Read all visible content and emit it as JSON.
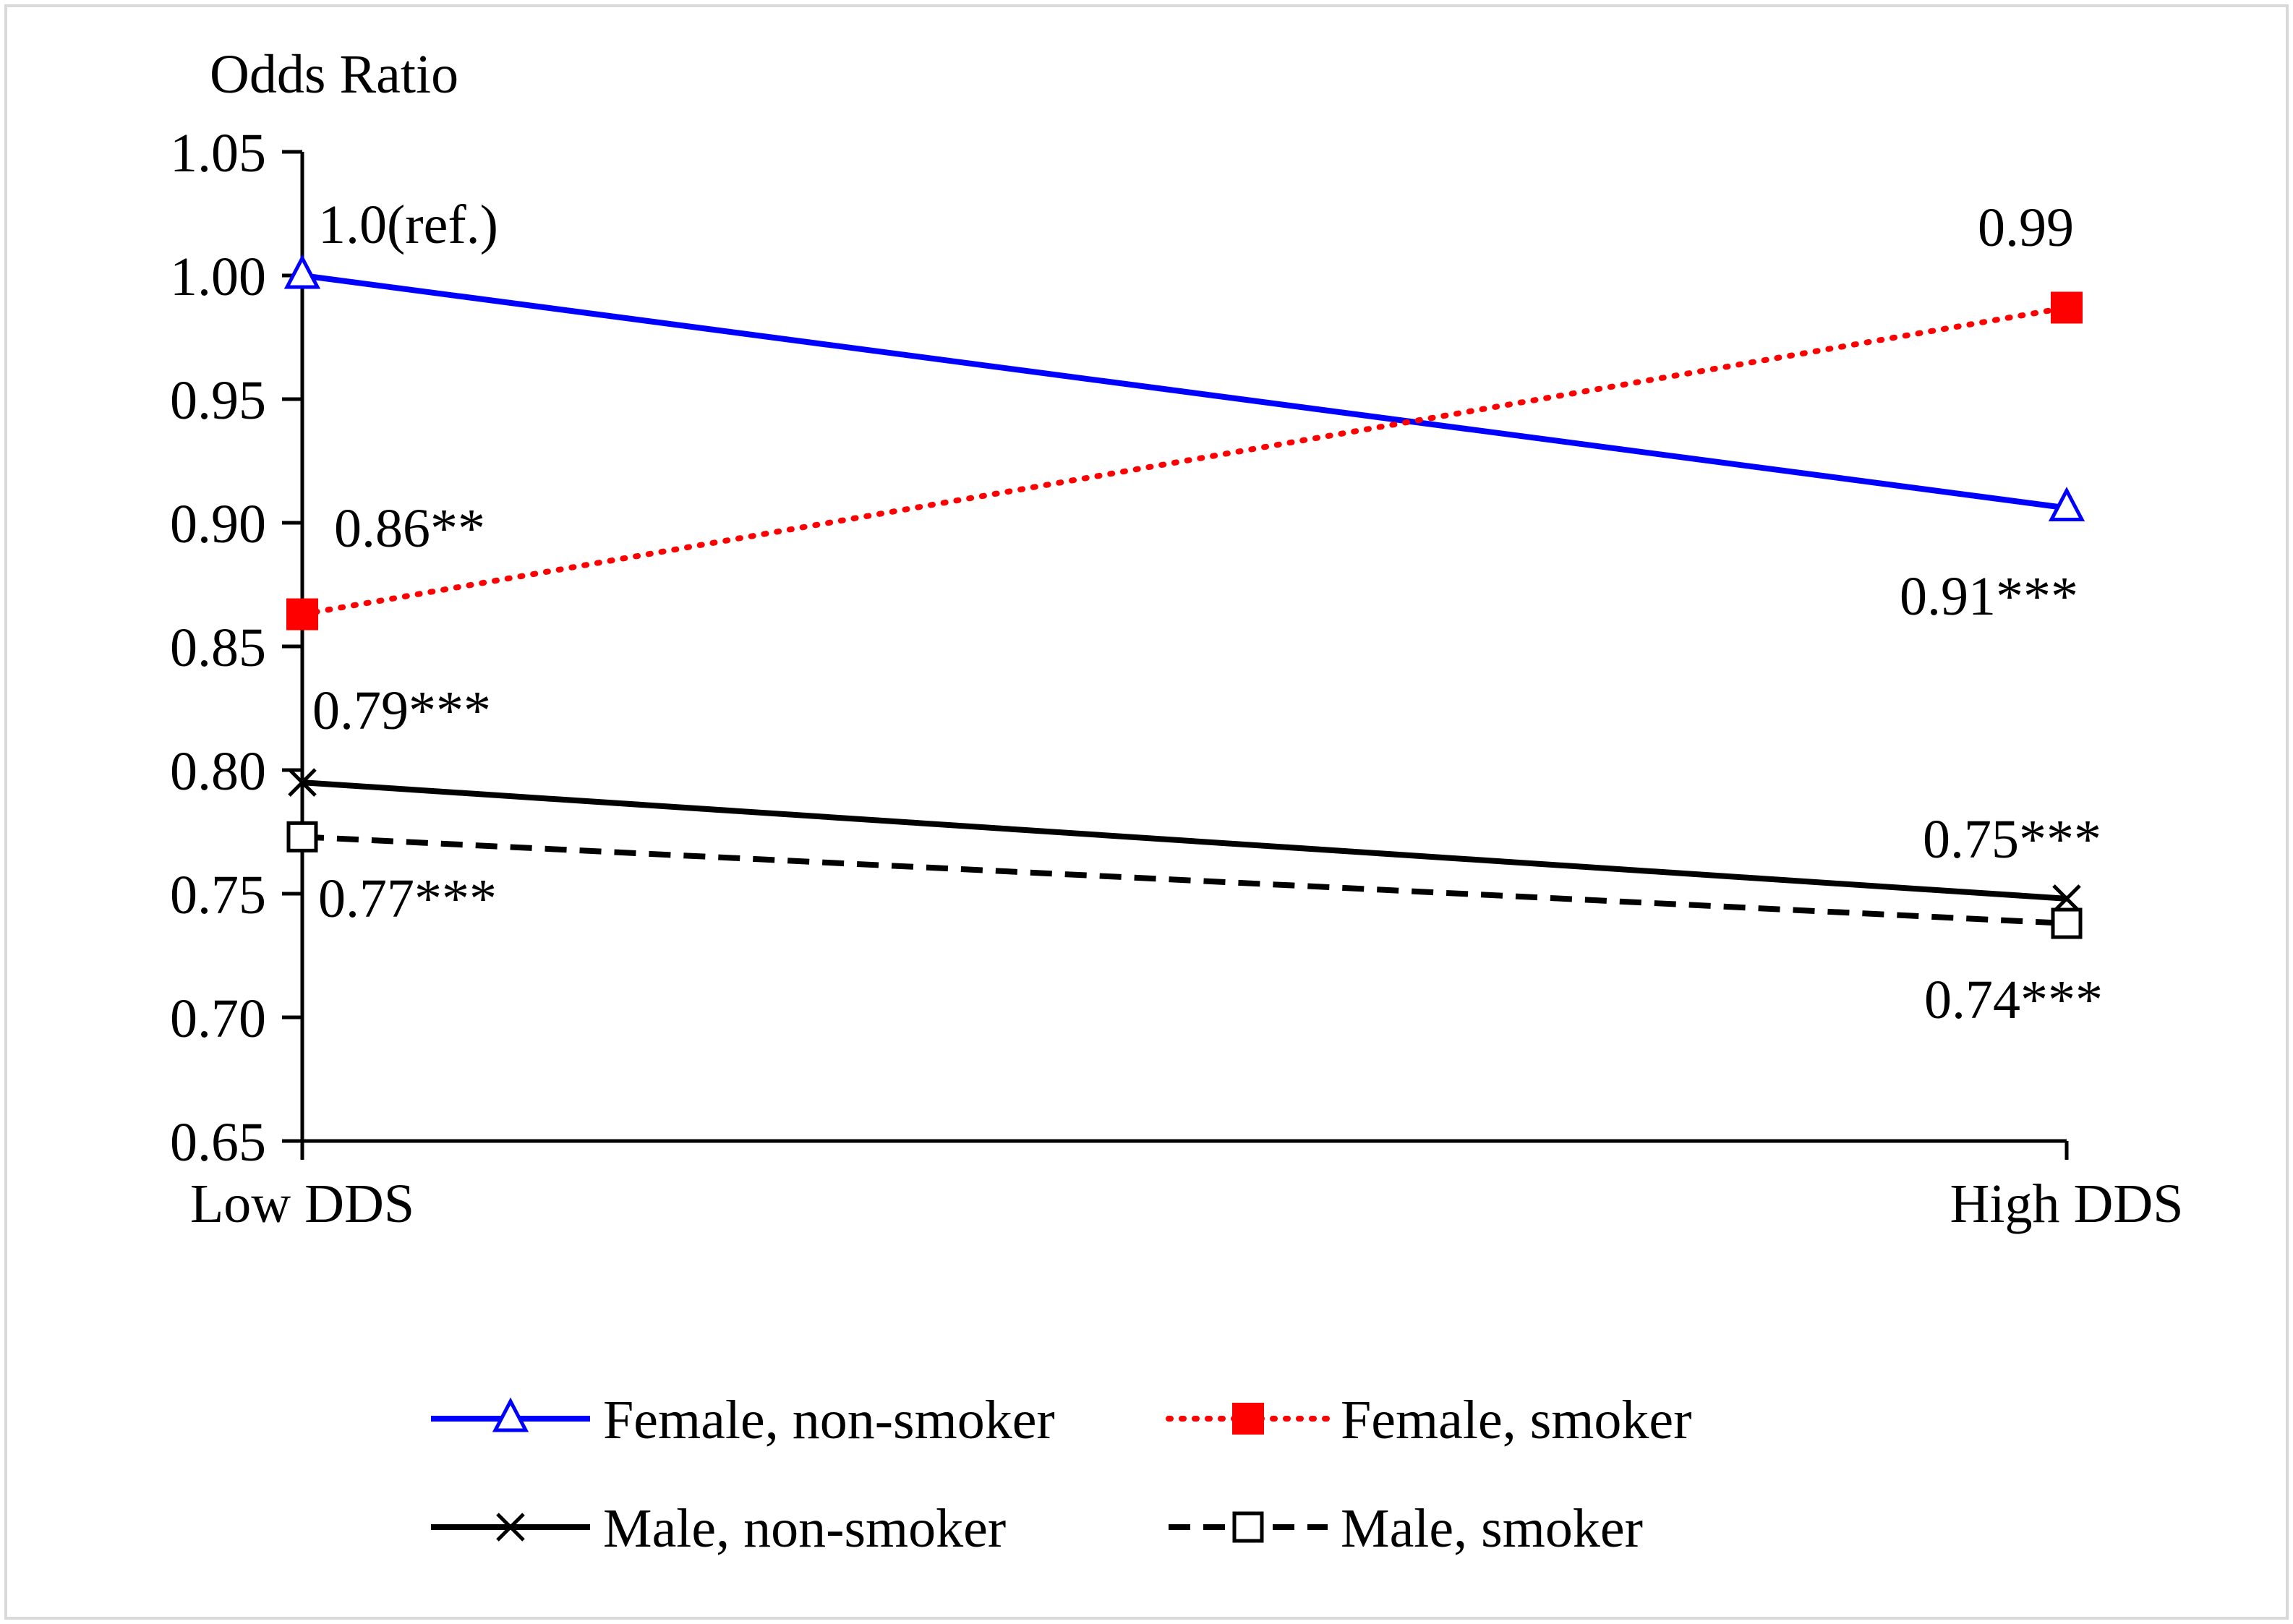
{
  "chart_data": {
    "type": "line",
    "ylabel": "Odds Ratio",
    "categories": [
      "Low DDS",
      "High DDS"
    ],
    "ylim": [
      0.65,
      1.05
    ],
    "yticks": [
      0.65,
      0.7,
      0.75,
      0.8,
      0.85,
      0.9,
      0.95,
      1.0,
      1.05
    ],
    "ytick_labels": [
      "0.65",
      "0.70",
      "0.75",
      "0.80",
      "0.85",
      "0.90",
      "0.95",
      "1.00",
      "1.05"
    ],
    "grid": false,
    "legend_position": "bottom",
    "series": [
      {
        "name": "Female, non-smoker",
        "values": [
          1.0,
          0.906
        ],
        "data_labels": [
          "1.0(ref.)",
          "0.91***"
        ],
        "color": "#0000ff",
        "line_style": "solid",
        "marker": "triangle-open"
      },
      {
        "name": "Female, smoker",
        "values": [
          0.863,
          0.987
        ],
        "data_labels": [
          "0.86**",
          "0.99"
        ],
        "color": "#ff0000",
        "line_style": "dotted",
        "marker": "square-filled"
      },
      {
        "name": "Male, non-smoker",
        "values": [
          0.795,
          0.748
        ],
        "data_labels": [
          "0.79***",
          "0.75***"
        ],
        "color": "#000000",
        "line_style": "solid",
        "marker": "x"
      },
      {
        "name": "Male, smoker",
        "values": [
          0.773,
          0.738
        ],
        "data_labels": [
          "0.77***",
          "0.74***"
        ],
        "color": "#000000",
        "line_style": "dashed",
        "marker": "square-open"
      }
    ]
  }
}
